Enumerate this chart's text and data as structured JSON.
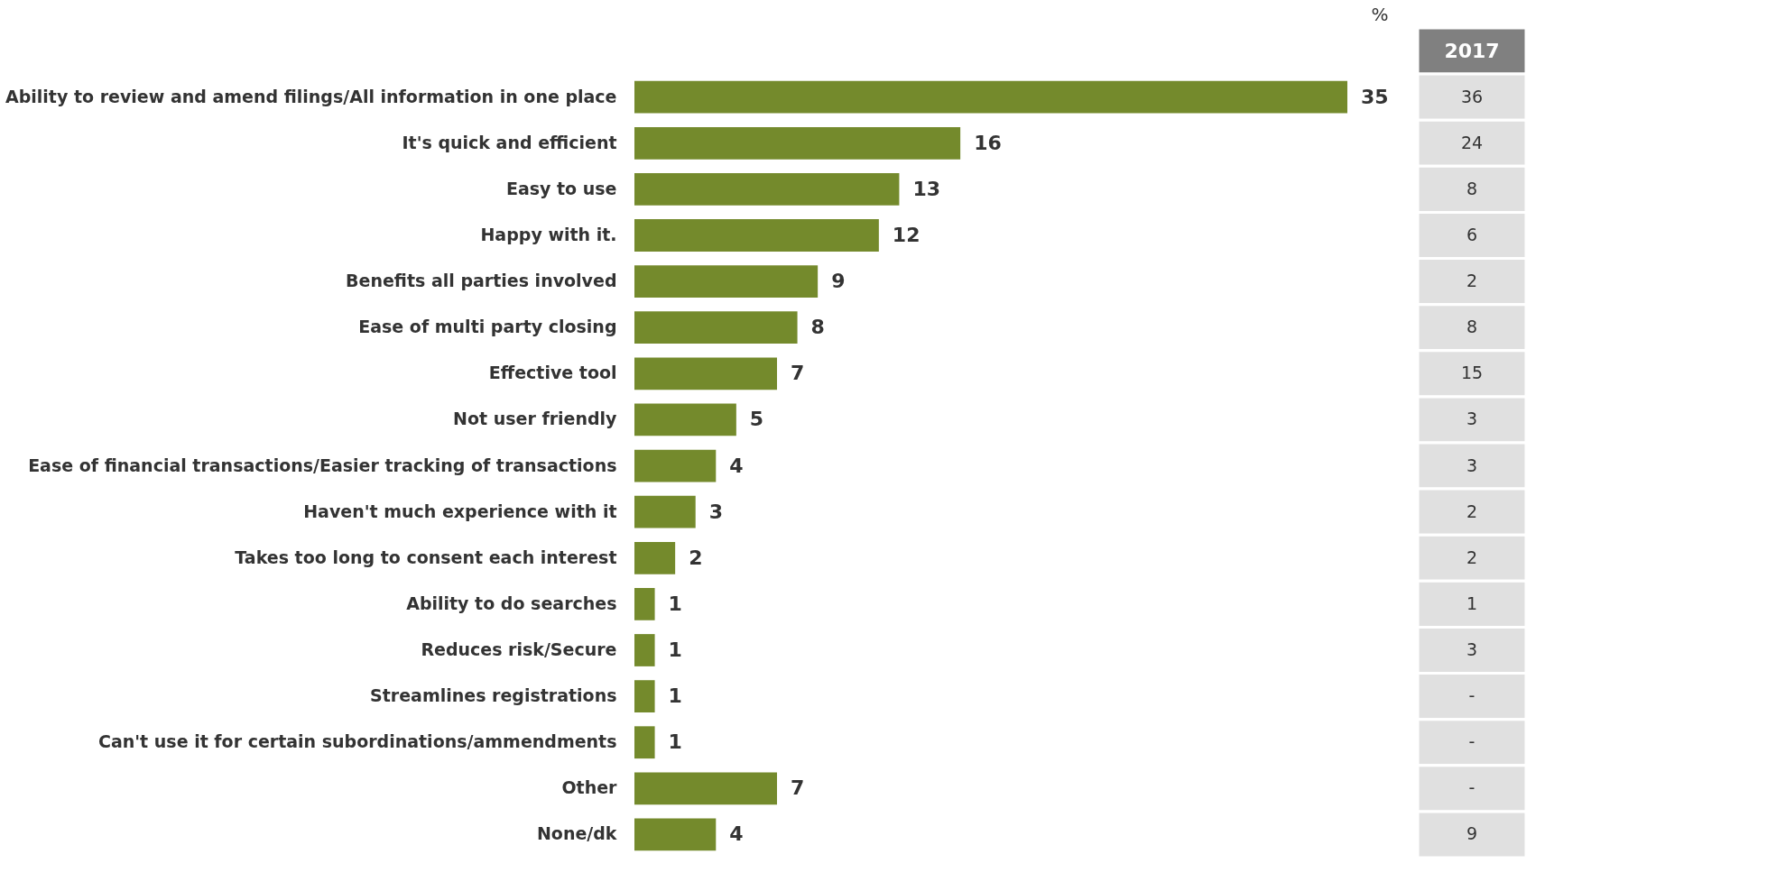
{
  "chart_data": {
    "type": "bar",
    "orientation": "horizontal",
    "data_labels": true,
    "categories": [
      "Ability to review and amend filings/All information in one place",
      "It's quick and efficient",
      "Easy to use",
      "Happy with it.",
      "Benefits all parties involved",
      "Ease of multi party closing",
      "Effective tool",
      "Not user friendly",
      "Ease of financial transactions/Easier tracking of  transactions",
      "Haven't much experience with it",
      "Takes too long to consent each interest",
      "Ability to do searches",
      "Reduces risk/Secure",
      "Streamlines registrations",
      "Can't use it for certain subordinations/ammendments",
      "Other",
      "None/dk"
    ],
    "series": [
      {
        "color": "#748a2c",
        "values": [
          35,
          16,
          13,
          12,
          9,
          8,
          7,
          5,
          4,
          3,
          2,
          1,
          1,
          1,
          1,
          7,
          4
        ]
      }
    ],
    "annotations": [
      "%",
      "2017",
      "36",
      "24",
      "8",
      "6",
      "2",
      "8",
      "15",
      "3",
      "3",
      "2",
      "2",
      "1",
      "3",
      "-",
      "-",
      "-",
      "9"
    ]
  }
}
